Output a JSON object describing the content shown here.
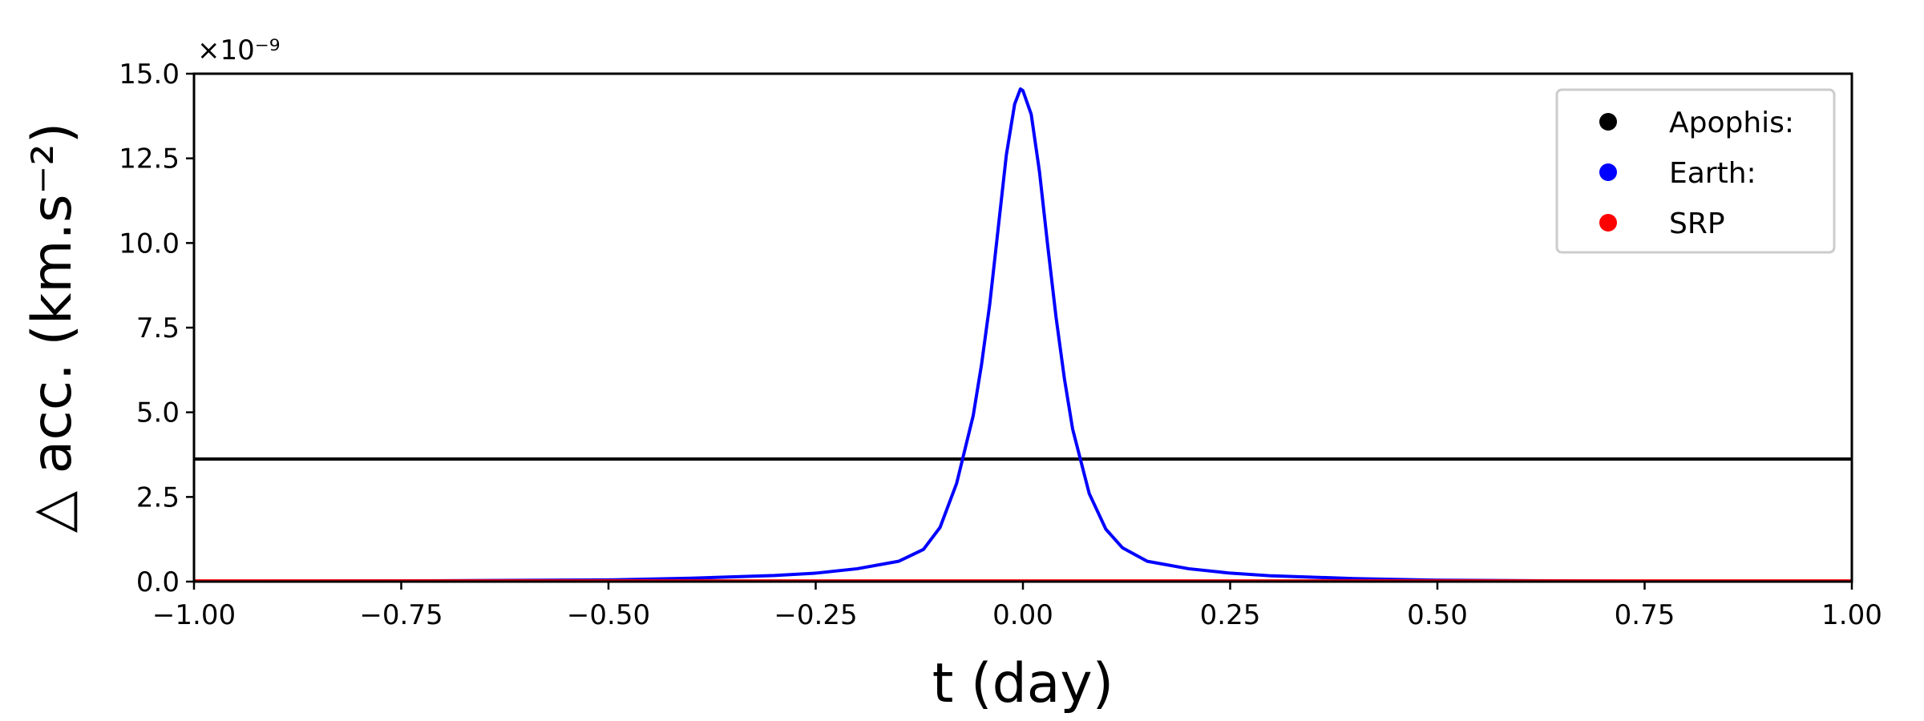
{
  "chart_data": {
    "type": "line",
    "xlabel": "t (day)",
    "ylabel": "△ acc. (km.s⁻²)",
    "y_scale_label": "×10⁻⁹",
    "xlim": [
      -1.0,
      1.0
    ],
    "ylim": [
      0.0,
      15.0
    ],
    "x_ticks": [
      -1.0,
      -0.75,
      -0.5,
      -0.25,
      0.0,
      0.25,
      0.5,
      0.75,
      1.0
    ],
    "x_tick_labels": [
      "−1.00",
      "−0.75",
      "−0.50",
      "−0.25",
      "0.00",
      "0.25",
      "0.50",
      "0.75",
      "1.00"
    ],
    "y_ticks": [
      0.0,
      2.5,
      5.0,
      7.5,
      10.0,
      12.5,
      15.0
    ],
    "y_tick_labels": [
      "0.0",
      "2.5",
      "5.0",
      "7.5",
      "10.0",
      "12.5",
      "15.0"
    ],
    "grid": false,
    "legend_position": "top-right",
    "series": [
      {
        "name": "Apophis:",
        "color": "#000000",
        "x": [
          -1.0,
          1.0
        ],
        "y": [
          3.62,
          3.62
        ]
      },
      {
        "name": "Earth:",
        "color": "#0000ff",
        "x": [
          -1.0,
          -0.75,
          -0.5,
          -0.4,
          -0.3,
          -0.25,
          -0.2,
          -0.15,
          -0.12,
          -0.1,
          -0.08,
          -0.06,
          -0.05,
          -0.04,
          -0.03,
          -0.02,
          -0.01,
          -0.003,
          0.0,
          0.01,
          0.02,
          0.03,
          0.04,
          0.05,
          0.06,
          0.08,
          0.1,
          0.12,
          0.15,
          0.2,
          0.25,
          0.3,
          0.4,
          0.5,
          0.75,
          1.0
        ],
        "y": [
          0.01,
          0.02,
          0.05,
          0.1,
          0.18,
          0.25,
          0.38,
          0.6,
          0.95,
          1.6,
          2.9,
          4.9,
          6.4,
          8.2,
          10.4,
          12.6,
          14.1,
          14.55,
          14.5,
          13.8,
          12.1,
          9.9,
          7.8,
          6.0,
          4.5,
          2.6,
          1.55,
          1.0,
          0.6,
          0.38,
          0.25,
          0.17,
          0.09,
          0.04,
          0.01,
          0.01
        ]
      },
      {
        "name": "SRP",
        "color": "#ff0000",
        "x": [
          -1.0,
          1.0
        ],
        "y": [
          0.02,
          0.02
        ]
      }
    ]
  }
}
